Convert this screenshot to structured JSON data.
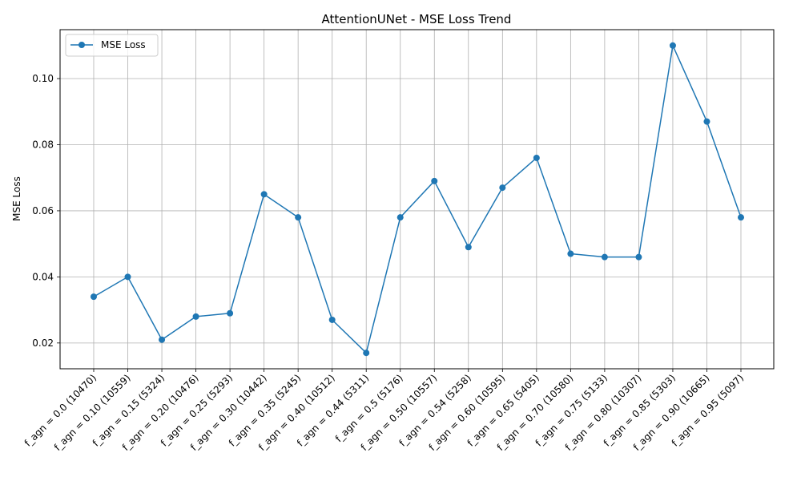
{
  "chart_data": {
    "type": "line",
    "title": "AttentionUNet - MSE Loss Trend",
    "xlabel": "",
    "ylabel": "MSE Loss",
    "categories": [
      "f_agn = 0.0 (10470)",
      "f_agn = 0.10 (10559)",
      "f_agn = 0.15 (5324)",
      "f_agn = 0.20 (10476)",
      "f_agn = 0.25 (5293)",
      "f_agn = 0.30 (10442)",
      "f_agn = 0.35 (5245)",
      "f_agn = 0.40 (10512)",
      "f_agn = 0.44 (5311)",
      "f_agn = 0.5 (5176)",
      "f_agn = 0.50 (10557)",
      "f_agn = 0.54 (5258)",
      "f_agn = 0.60 (10595)",
      "f_agn = 0.65 (5405)",
      "f_agn = 0.70 (10580)",
      "f_agn = 0.75 (5133)",
      "f_agn = 0.80 (10307)",
      "f_agn = 0.85 (5303)",
      "f_agn = 0.90 (10665)",
      "f_agn = 0.95 (5097)"
    ],
    "series": [
      {
        "name": "MSE Loss",
        "color": "#1f77b4",
        "marker": "circle",
        "values": [
          0.034,
          0.04,
          0.021,
          0.028,
          0.029,
          0.065,
          0.058,
          0.027,
          0.017,
          0.058,
          0.069,
          0.049,
          0.067,
          0.076,
          0.047,
          0.046,
          0.046,
          0.11,
          0.087,
          0.058
        ]
      }
    ],
    "ylim": [
      0.0122,
      0.1148
    ],
    "yticks": [
      "0.02",
      "0.04",
      "0.06",
      "0.08",
      "0.10"
    ],
    "grid": true,
    "legend": "upper-left"
  }
}
